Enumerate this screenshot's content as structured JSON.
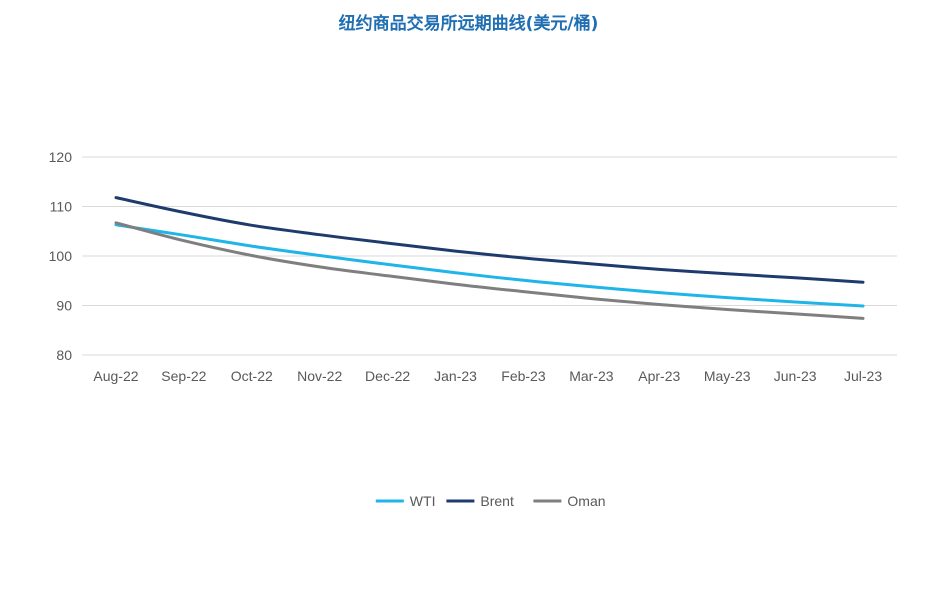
{
  "chart_data": {
    "type": "line",
    "title": "纽约商品交易所远期曲线(美元/桶)",
    "categories": [
      "Aug-22",
      "Sep-22",
      "Oct-22",
      "Nov-22",
      "Dec-22",
      "Jan-23",
      "Feb-23",
      "Mar-23",
      "Apr-23",
      "May-23",
      "Jun-23",
      "Jul-23"
    ],
    "ylim": [
      80,
      120
    ],
    "yticks": [
      80,
      90,
      100,
      110,
      120
    ],
    "grid": true,
    "legend_position": "bottom",
    "series": [
      {
        "name": "WTI",
        "color": "#1fb5e8",
        "values": [
          106.3,
          104.2,
          102.0,
          100.1,
          98.3,
          96.6,
          95.1,
          93.8,
          92.6,
          91.6,
          90.7,
          89.9
        ]
      },
      {
        "name": "Brent",
        "color": "#1f3b6e",
        "values": [
          111.8,
          108.8,
          106.2,
          104.3,
          102.6,
          101.0,
          99.6,
          98.4,
          97.3,
          96.4,
          95.6,
          94.7
        ]
      },
      {
        "name": "Oman",
        "color": "#7f7f7f",
        "values": [
          106.7,
          103.1,
          100.1,
          97.8,
          96.0,
          94.3,
          92.8,
          91.4,
          90.2,
          89.2,
          88.3,
          87.4
        ]
      }
    ]
  }
}
